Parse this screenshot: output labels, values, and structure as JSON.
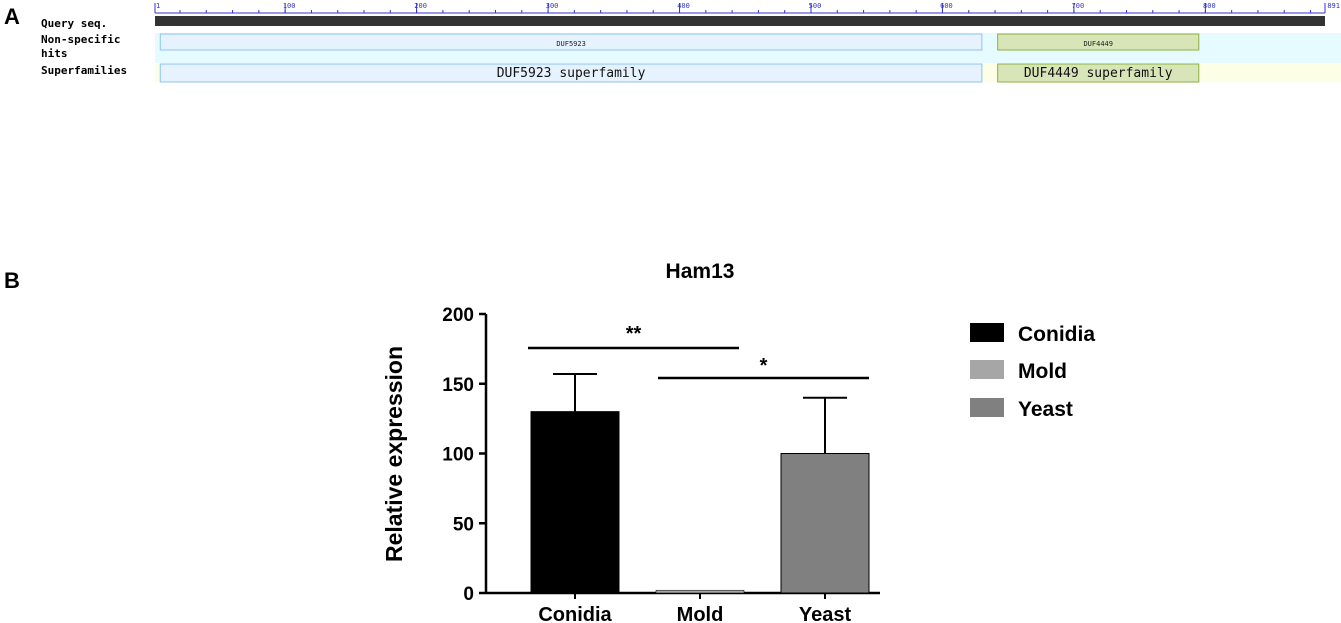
{
  "panel_a": {
    "letter": "A",
    "row_labels": [
      "Query seq.",
      "Non-specific",
      "hits",
      "Superfamilies"
    ],
    "ruler": {
      "min": 1,
      "max": 891,
      "tick_labels": [
        "1",
        "100",
        "200",
        "300",
        "400",
        "500",
        "600",
        "700",
        "800",
        "891"
      ],
      "minor_step": 20
    },
    "domains": [
      {
        "name": "DUF5923",
        "superfamily": "DUF5923 superfamily",
        "start": 5,
        "end": 630,
        "color": "#e6f2fd",
        "border": "#8cc4f2"
      },
      {
        "name": "DUF4449",
        "superfamily": "DUF4449 superfamily",
        "start": 642,
        "end": 795,
        "color": "#d8e5b8",
        "border": "#8db13f"
      }
    ],
    "row_colors": {
      "hits": "#e6fbff",
      "superfamilies_tail": "#fcffe6"
    }
  },
  "panel_b": {
    "letter": "B",
    "chart_data": {
      "type": "bar",
      "title": "Ham13",
      "xlabel": "",
      "ylabel": "Relative expression",
      "categories": [
        "Conidia",
        "Mold",
        "Yeast"
      ],
      "values": [
        130,
        2,
        100
      ],
      "errors": [
        27,
        0,
        40
      ],
      "colors": [
        "#000000",
        "#a6a6a6",
        "#808080"
      ],
      "ylim": [
        0,
        200
      ],
      "yticks": [
        "0",
        "50",
        "100",
        "150",
        "200"
      ],
      "legend": {
        "placement": "right",
        "entries": [
          "Conidia",
          "Mold",
          "Yeast"
        ]
      },
      "significance": [
        {
          "label": "**",
          "from": "Conidia",
          "to": "Mold"
        },
        {
          "label": "*",
          "from": "Mold",
          "to": "Yeast"
        }
      ],
      "grid": false
    }
  }
}
